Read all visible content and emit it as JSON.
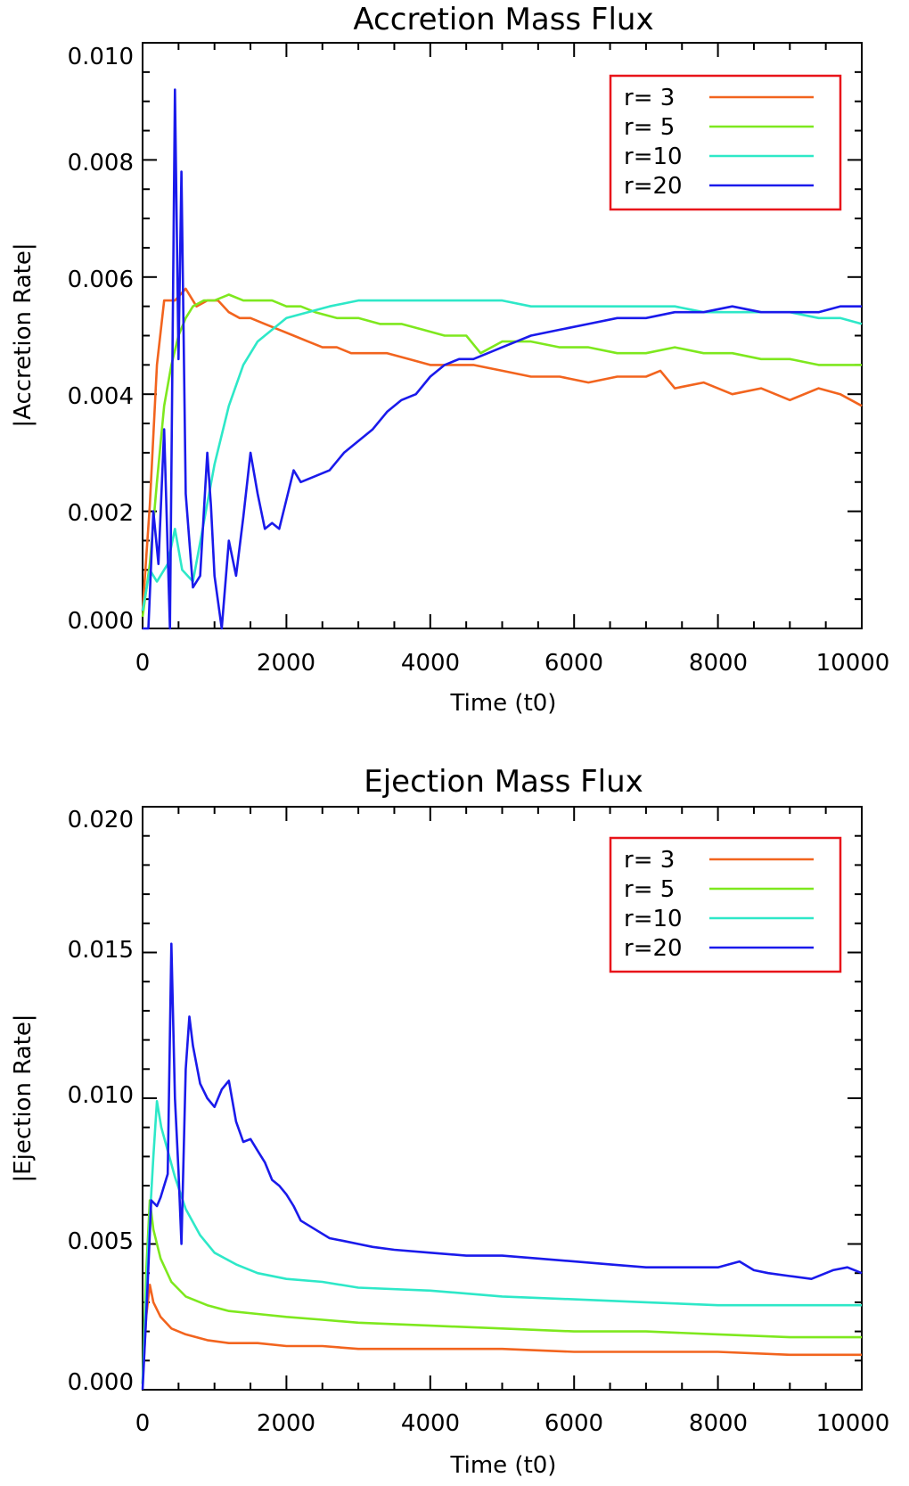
{
  "colors": {
    "r3": "#f2641e",
    "r5": "#7ee81e",
    "r10": "#2ee8c8",
    "r20": "#1a1aeb",
    "legend_border": "#e8141a"
  },
  "chart_data": [
    {
      "type": "line",
      "title": "Accretion Mass Flux",
      "xlabel": "Time (t0)",
      "ylabel": "|Accretion Rate|",
      "xlim": [
        0,
        10000
      ],
      "ylim": [
        0,
        0.01
      ],
      "xticks": [
        "0",
        "2000",
        "4000",
        "6000",
        "8000",
        "10000"
      ],
      "yticks": [
        "0.000",
        "0.002",
        "0.004",
        "0.006",
        "0.008",
        "0.010"
      ],
      "legend_position": "top-right",
      "series": [
        {
          "name": "r=  3",
          "color_key": "r3",
          "x": [
            0,
            100,
            200,
            300,
            450,
            600,
            750,
            900,
            1050,
            1200,
            1350,
            1500,
            1700,
            1900,
            2100,
            2300,
            2500,
            2700,
            2900,
            3100,
            3400,
            3700,
            4000,
            4300,
            4600,
            5000,
            5400,
            5800,
            6200,
            6600,
            7000,
            7200,
            7400,
            7800,
            8200,
            8600,
            9000,
            9400,
            9700,
            10000
          ],
          "y": [
            0.0003,
            0.0021,
            0.0045,
            0.0056,
            0.0056,
            0.0058,
            0.0055,
            0.0056,
            0.0056,
            0.0054,
            0.0053,
            0.0053,
            0.0052,
            0.0051,
            0.005,
            0.0049,
            0.0048,
            0.0048,
            0.0047,
            0.0047,
            0.0047,
            0.0046,
            0.0045,
            0.0045,
            0.0045,
            0.0044,
            0.0043,
            0.0043,
            0.0042,
            0.0043,
            0.0043,
            0.0044,
            0.0041,
            0.0042,
            0.004,
            0.0041,
            0.0039,
            0.0041,
            0.004,
            0.0038
          ]
        },
        {
          "name": "r=  5",
          "color_key": "r5",
          "x": [
            0,
            100,
            200,
            300,
            400,
            500,
            600,
            700,
            850,
            1000,
            1200,
            1400,
            1600,
            1800,
            2000,
            2200,
            2400,
            2700,
            3000,
            3300,
            3600,
            3900,
            4200,
            4500,
            4700,
            5000,
            5400,
            5800,
            6200,
            6600,
            7000,
            7400,
            7800,
            8200,
            8600,
            9000,
            9400,
            9700,
            10000
          ],
          "y": [
            0.0002,
            0.0011,
            0.0025,
            0.0038,
            0.0045,
            0.005,
            0.0053,
            0.0055,
            0.0056,
            0.0056,
            0.0057,
            0.0056,
            0.0056,
            0.0056,
            0.0055,
            0.0055,
            0.0054,
            0.0053,
            0.0053,
            0.0052,
            0.0052,
            0.0051,
            0.005,
            0.005,
            0.0047,
            0.0049,
            0.0049,
            0.0048,
            0.0048,
            0.0047,
            0.0047,
            0.0048,
            0.0047,
            0.0047,
            0.0046,
            0.0046,
            0.0045,
            0.0045,
            0.0045
          ]
        },
        {
          "name": "r=10",
          "color_key": "r10",
          "x": [
            0,
            100,
            200,
            350,
            450,
            550,
            700,
            850,
            1000,
            1200,
            1400,
            1600,
            1800,
            2000,
            2300,
            2600,
            3000,
            3400,
            3800,
            4200,
            4600,
            5000,
            5400,
            5800,
            6200,
            6600,
            7000,
            7400,
            7800,
            8200,
            8600,
            9000,
            9400,
            9700,
            10000
          ],
          "y": [
            0.0003,
            0.001,
            0.0008,
            0.0011,
            0.0017,
            0.001,
            0.0008,
            0.0018,
            0.0028,
            0.0038,
            0.0045,
            0.0049,
            0.0051,
            0.0053,
            0.0054,
            0.0055,
            0.0056,
            0.0056,
            0.0056,
            0.0056,
            0.0056,
            0.0056,
            0.0055,
            0.0055,
            0.0055,
            0.0055,
            0.0055,
            0.0055,
            0.0054,
            0.0054,
            0.0054,
            0.0054,
            0.0053,
            0.0053,
            0.0052
          ]
        },
        {
          "name": "r=20",
          "color_key": "r20",
          "x": [
            0,
            80,
            150,
            220,
            300,
            380,
            450,
            500,
            540,
            600,
            700,
            800,
            900,
            950,
            1000,
            1100,
            1200,
            1300,
            1400,
            1500,
            1600,
            1700,
            1800,
            1900,
            2000,
            2100,
            2200,
            2400,
            2600,
            2800,
            3000,
            3200,
            3400,
            3600,
            3800,
            4000,
            4200,
            4400,
            4600,
            4800,
            5000,
            5400,
            5800,
            6200,
            6600,
            7000,
            7400,
            7800,
            8200,
            8600,
            9000,
            9400,
            9700,
            10000
          ],
          "y": [
            0.0,
            0.0,
            0.002,
            0.0011,
            0.0034,
            0.0,
            0.0092,
            0.0046,
            0.0078,
            0.0023,
            0.0007,
            0.0009,
            0.003,
            0.0021,
            0.0009,
            0.0,
            0.0015,
            0.0009,
            0.0019,
            0.003,
            0.0023,
            0.0017,
            0.0018,
            0.0017,
            0.0022,
            0.0027,
            0.0025,
            0.0026,
            0.0027,
            0.003,
            0.0032,
            0.0034,
            0.0037,
            0.0039,
            0.004,
            0.0043,
            0.0045,
            0.0046,
            0.0046,
            0.0047,
            0.0048,
            0.005,
            0.0051,
            0.0052,
            0.0053,
            0.0053,
            0.0054,
            0.0054,
            0.0055,
            0.0054,
            0.0054,
            0.0054,
            0.0055,
            0.0055
          ]
        }
      ]
    },
    {
      "type": "line",
      "title": "Ejection Mass Flux",
      "xlabel": "Time (t0)",
      "ylabel": "|Ejection Rate|",
      "xlim": [
        0,
        10000
      ],
      "ylim": [
        0,
        0.02
      ],
      "xticks": [
        "0",
        "2000",
        "4000",
        "6000",
        "8000",
        "10000"
      ],
      "yticks": [
        "0.000",
        "0.005",
        "0.010",
        "0.015",
        "0.020"
      ],
      "legend_position": "top-right",
      "series": [
        {
          "name": "r=  3",
          "color_key": "r3",
          "x": [
            0,
            50,
            100,
            150,
            250,
            400,
            600,
            900,
            1200,
            1600,
            2000,
            2500,
            3000,
            4000,
            5000,
            6000,
            7000,
            8000,
            9000,
            10000
          ],
          "y": [
            0.0002,
            0.0025,
            0.0036,
            0.003,
            0.0025,
            0.0021,
            0.0019,
            0.0017,
            0.0016,
            0.0016,
            0.0015,
            0.0015,
            0.0014,
            0.0014,
            0.0014,
            0.0013,
            0.0013,
            0.0013,
            0.0012,
            0.0012
          ]
        },
        {
          "name": "r=  5",
          "color_key": "r5",
          "x": [
            0,
            50,
            100,
            150,
            250,
            400,
            600,
            900,
            1200,
            1600,
            2000,
            2500,
            3000,
            4000,
            5000,
            6000,
            7000,
            8000,
            9000,
            10000
          ],
          "y": [
            0.0002,
            0.004,
            0.0065,
            0.0055,
            0.0045,
            0.0037,
            0.0032,
            0.0029,
            0.0027,
            0.0026,
            0.0025,
            0.0024,
            0.0023,
            0.0022,
            0.0021,
            0.002,
            0.002,
            0.0019,
            0.0018,
            0.0018
          ]
        },
        {
          "name": "r=10",
          "color_key": "r10",
          "x": [
            0,
            80,
            150,
            200,
            260,
            350,
            450,
            600,
            800,
            1000,
            1300,
            1600,
            2000,
            2500,
            3000,
            4000,
            5000,
            6000,
            7000,
            8000,
            9000,
            10000
          ],
          "y": [
            0.0002,
            0.005,
            0.008,
            0.0099,
            0.009,
            0.0082,
            0.0073,
            0.0062,
            0.0053,
            0.0047,
            0.0043,
            0.004,
            0.0038,
            0.0037,
            0.0035,
            0.0034,
            0.0032,
            0.0031,
            0.003,
            0.0029,
            0.0029,
            0.0029
          ]
        },
        {
          "name": "r=20",
          "color_key": "r20",
          "x": [
            0,
            60,
            120,
            200,
            250,
            300,
            350,
            400,
            450,
            500,
            540,
            600,
            650,
            700,
            800,
            900,
            1000,
            1100,
            1200,
            1300,
            1400,
            1500,
            1600,
            1700,
            1800,
            1900,
            2000,
            2100,
            2200,
            2400,
            2600,
            2800,
            3000,
            3200,
            3500,
            4000,
            4500,
            5000,
            5500,
            6000,
            6500,
            7000,
            7500,
            8000,
            8300,
            8500,
            8700,
            9000,
            9300,
            9600,
            9800,
            10000
          ],
          "y": [
            0.0,
            0.003,
            0.0065,
            0.0063,
            0.0066,
            0.007,
            0.0074,
            0.0153,
            0.01,
            0.0075,
            0.005,
            0.011,
            0.0128,
            0.0118,
            0.0105,
            0.01,
            0.0097,
            0.0103,
            0.0106,
            0.0092,
            0.0085,
            0.0086,
            0.0082,
            0.0078,
            0.0072,
            0.007,
            0.0067,
            0.0063,
            0.0058,
            0.0055,
            0.0052,
            0.0051,
            0.005,
            0.0049,
            0.0048,
            0.0047,
            0.0046,
            0.0046,
            0.0045,
            0.0044,
            0.0043,
            0.0042,
            0.0042,
            0.0042,
            0.0044,
            0.0041,
            0.004,
            0.0039,
            0.0038,
            0.0041,
            0.0042,
            0.004
          ]
        }
      ]
    }
  ]
}
